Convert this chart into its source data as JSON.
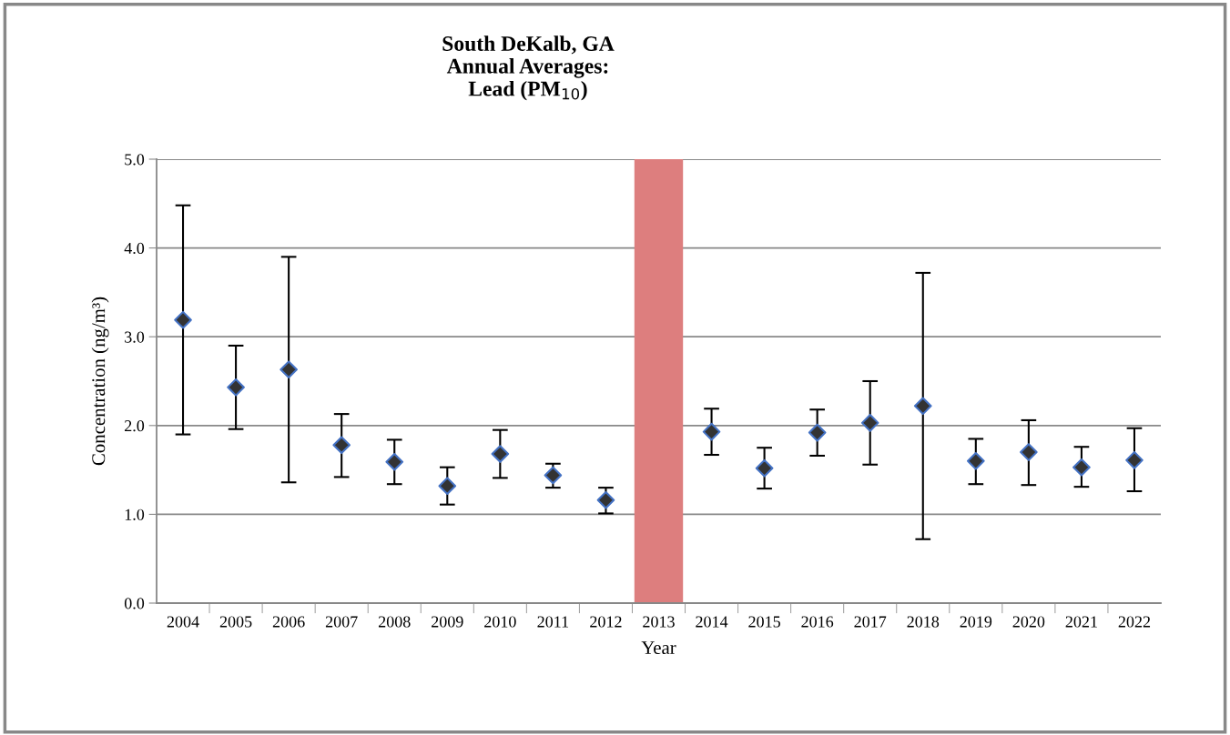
{
  "chart_data": {
    "type": "scatter",
    "title": "South DeKalb, GA\nAnnual Averages:\nLead (PM$_{10}$)",
    "xlabel": "Year",
    "ylabel": "Concentration (ng/m³)",
    "categories": [
      "2004",
      "2005",
      "2006",
      "2007",
      "2008",
      "2009",
      "2010",
      "2011",
      "2012",
      "2013",
      "2014",
      "2015",
      "2016",
      "2017",
      "2018",
      "2019",
      "2020",
      "2021",
      "2022"
    ],
    "series": [
      {
        "color": "#333333",
        "values": [
          3.19,
          2.43,
          2.63,
          1.78,
          1.59,
          1.32,
          1.68,
          1.44,
          1.16,
          null,
          1.93,
          1.52,
          1.92,
          2.03,
          2.22,
          1.6,
          1.7,
          1.53,
          1.61
        ],
        "errors": [
          [
            1.9,
            4.48
          ],
          [
            1.96,
            2.9
          ],
          [
            1.36,
            3.9
          ],
          [
            1.42,
            2.13
          ],
          [
            1.34,
            1.84
          ],
          [
            1.11,
            1.53
          ],
          [
            1.41,
            1.95
          ],
          [
            1.3,
            1.57
          ],
          [
            1.01,
            1.3
          ],
          null,
          [
            1.67,
            2.19
          ],
          [
            1.29,
            1.75
          ],
          [
            1.66,
            2.18
          ],
          [
            1.56,
            2.5
          ],
          [
            0.72,
            3.72
          ],
          [
            1.34,
            1.85
          ],
          [
            1.33,
            2.06
          ],
          [
            1.31,
            1.76
          ],
          [
            1.26,
            1.97
          ]
        ]
      }
    ],
    "bands": [
      {
        "axis": "x",
        "from": "2013",
        "to": "2013",
        "color": "#dd7e7e"
      }
    ],
    "ylim": [
      0,
      5
    ],
    "yticks": [
      {
        "value": 0,
        "label": "0.0"
      },
      {
        "value": 1,
        "label": "1.0"
      },
      {
        "value": 2,
        "label": "2.0"
      },
      {
        "value": 3,
        "label": "3.0"
      },
      {
        "value": 4,
        "label": "4.0"
      },
      {
        "value": 5,
        "label": "5.0"
      }
    ],
    "grid": "y",
    "marker": "diamond"
  }
}
